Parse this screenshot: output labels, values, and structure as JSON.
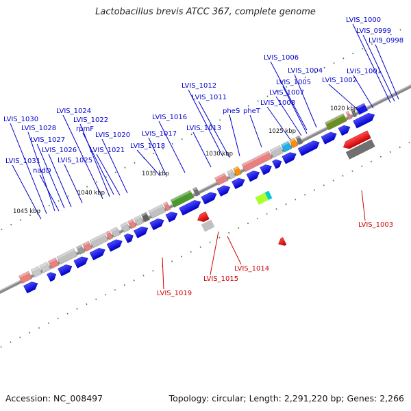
{
  "title": "Lactobacillus brevis ATCC 367, complete genome",
  "footer": {
    "accession": "Accession: NC_008497",
    "summary": "Topology: circular; Length: 2,291,220 bp; Genes: 2,266"
  },
  "colors": {
    "forward_cds": "#1a1ae6",
    "reverse_cds": "#e60000",
    "forward_label": "#0000cc",
    "reverse_label": "#cc0000",
    "backbone": "#808080",
    "tick": "#228b22"
  },
  "kbp_ticks": [
    "1020 kbp",
    "1025 kbp",
    "1030 kbp",
    "1035 kbp",
    "1040 kbp",
    "1045 kbp"
  ],
  "forward_genes": [
    "LVIS_1000",
    "LVIS_0999",
    "LVIS_0998",
    "LVIS_1006",
    "LVIS_1004",
    "LVIS_1005",
    "LVIS_1001",
    "LVIS_1002",
    "LVIS_1007",
    "LVIS_1008",
    "LVIS_1012",
    "LVIS_1011",
    "pheS",
    "pheT",
    "LVIS_1024",
    "LVIS_1022",
    "rpmF",
    "LVIS_1030",
    "LVIS_1028",
    "LVIS_1016",
    "LVIS_1013",
    "LVIS_1020",
    "LVIS_1017",
    "LVIS_1027",
    "LVIS_1018",
    "LVIS_1026",
    "LVIS_1021",
    "LVIS_1031",
    "LVIS_1025",
    "nadD"
  ],
  "reverse_genes": [
    "LVIS_1003",
    "LVIS_1014",
    "LVIS_1015",
    "LVIS_1019"
  ]
}
